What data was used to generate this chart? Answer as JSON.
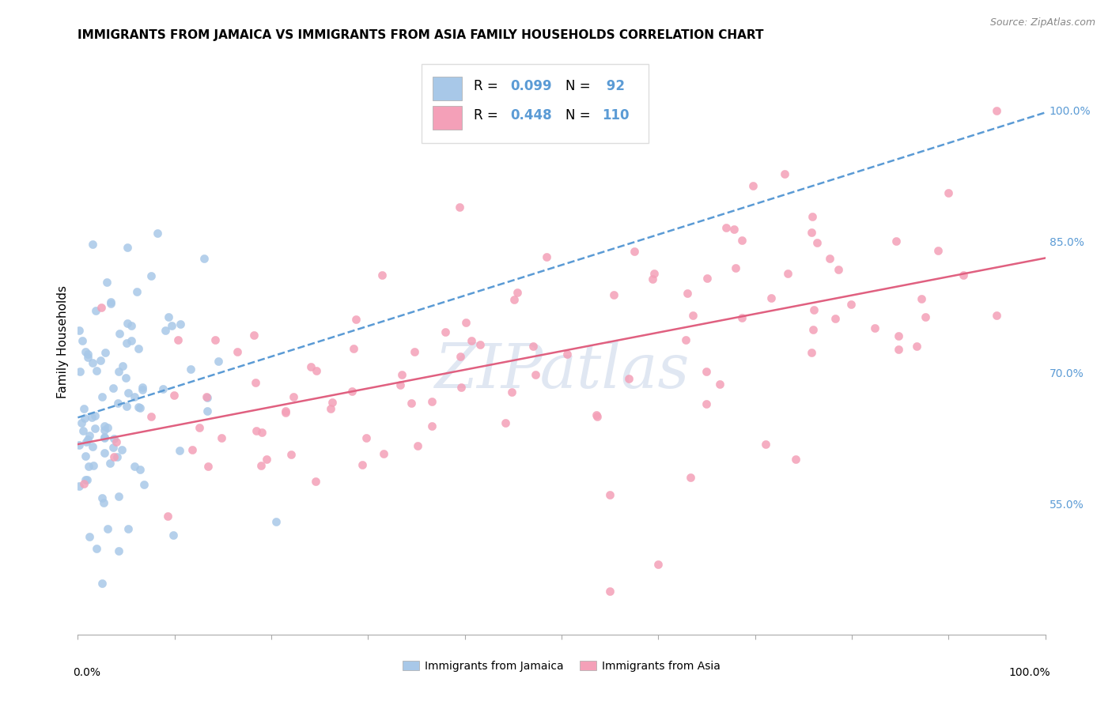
{
  "title": "IMMIGRANTS FROM JAMAICA VS IMMIGRANTS FROM ASIA FAMILY HOUSEHOLDS CORRELATION CHART",
  "source": "Source: ZipAtlas.com",
  "ylabel": "Family Households",
  "right_yticks": [
    55.0,
    70.0,
    85.0,
    100.0
  ],
  "legend_jamaica": "Immigrants from Jamaica",
  "legend_asia": "Immigrants from Asia",
  "R_jamaica": "0.099",
  "N_jamaica": "92",
  "R_asia": "0.448",
  "N_asia": "110",
  "blue_color": "#a8c8e8",
  "pink_color": "#f4a0b8",
  "blue_line_color": "#5b9bd5",
  "pink_line_color": "#e06080",
  "watermark": "ZIPatlas",
  "watermark_color": "#ccd8ea",
  "xlim": [
    0,
    100
  ],
  "ylim": [
    40,
    107
  ],
  "title_fontsize": 11,
  "seed": 12345
}
